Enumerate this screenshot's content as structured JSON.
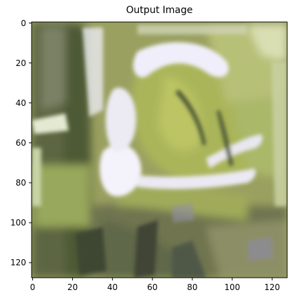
{
  "figure": {
    "title": "Output Image"
  },
  "axes": {
    "x_ticks": [
      "0",
      "20",
      "40",
      "60",
      "80",
      "100",
      "120"
    ],
    "y_ticks": [
      "0",
      "20",
      "40",
      "60",
      "80",
      "100",
      "120"
    ]
  }
}
